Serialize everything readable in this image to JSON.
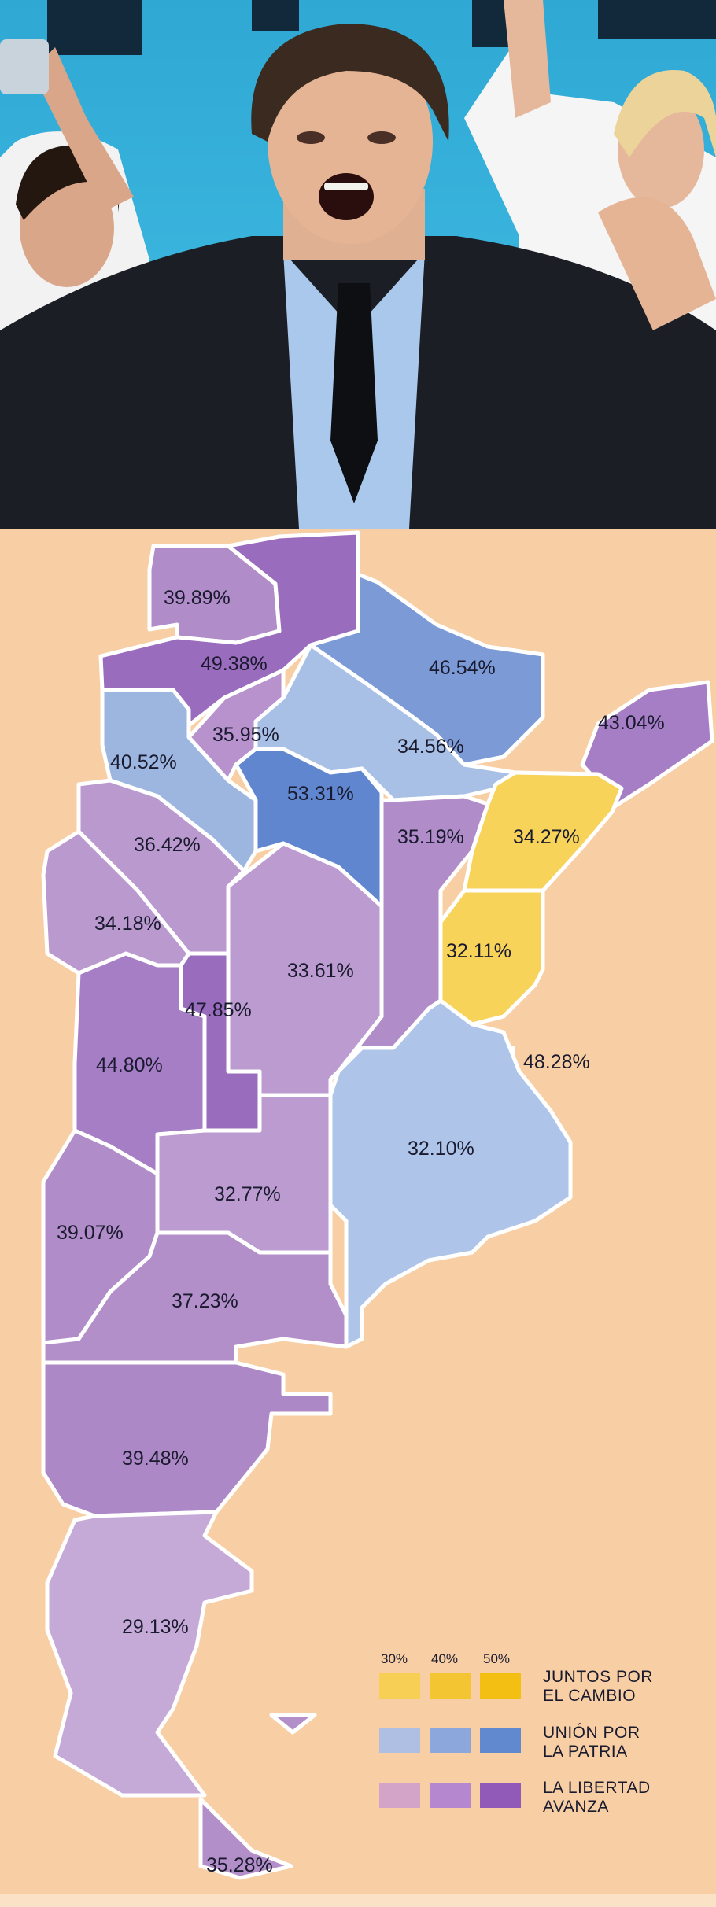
{
  "map": {
    "provinces": [
      {
        "id": "jujuy",
        "value": "39.89%",
        "party": "libertad",
        "level": 30,
        "color": "#b08cc8"
      },
      {
        "id": "salta",
        "value": "49.38%",
        "party": "libertad",
        "level": 40,
        "color": "#9a6cbd"
      },
      {
        "id": "formosa",
        "value": "46.54%",
        "party": "union",
        "level": 40,
        "color": "#7b9ad6"
      },
      {
        "id": "misiones",
        "value": "43.04%",
        "party": "libertad",
        "level": 40,
        "color": "#a57ec6"
      },
      {
        "id": "catamarca",
        "value": "40.52%",
        "party": "union",
        "level": 40,
        "color": "#9cb6e0"
      },
      {
        "id": "tucuman",
        "value": "35.95%",
        "party": "libertad",
        "level": 30,
        "color": "#b792cd"
      },
      {
        "id": "chaco",
        "value": "34.56%",
        "party": "union",
        "level": 30,
        "color": "#a8c0e6"
      },
      {
        "id": "santiago-del-estero",
        "value": "53.31%",
        "party": "union",
        "level": 50,
        "color": "#5f86cf"
      },
      {
        "id": "la-rioja",
        "value": "36.42%",
        "party": "libertad",
        "level": 30,
        "color": "#ba99cf"
      },
      {
        "id": "santa-fe",
        "value": "35.19%",
        "party": "libertad",
        "level": 30,
        "color": "#b08cc8"
      },
      {
        "id": "corrientes",
        "value": "34.27%",
        "party": "juntos",
        "level": 30,
        "color": "#f7d35a"
      },
      {
        "id": "san-juan",
        "value": "34.18%",
        "party": "libertad",
        "level": 30,
        "color": "#ba99cf"
      },
      {
        "id": "cordoba",
        "value": "33.61%",
        "party": "libertad",
        "level": 30,
        "color": "#bb9bd0"
      },
      {
        "id": "entre-rios",
        "value": "32.11%",
        "party": "juntos",
        "level": 30,
        "color": "#f7d35a"
      },
      {
        "id": "san-luis",
        "value": "47.85%",
        "party": "libertad",
        "level": 40,
        "color": "#9a6cbd"
      },
      {
        "id": "mendoza",
        "value": "44.80%",
        "party": "libertad",
        "level": 40,
        "color": "#a57ec6"
      },
      {
        "id": "caba",
        "value": "48.28%",
        "party": "juntos",
        "level": 40,
        "color": "#f2c21a"
      },
      {
        "id": "buenos-aires",
        "value": "32.10%",
        "party": "union",
        "level": 30,
        "color": "#aec4e8"
      },
      {
        "id": "la-pampa",
        "value": "32.77%",
        "party": "libertad",
        "level": 30,
        "color": "#bb9bd0"
      },
      {
        "id": "neuquen",
        "value": "39.07%",
        "party": "libertad",
        "level": 30,
        "color": "#b08cc8"
      },
      {
        "id": "rio-negro",
        "value": "37.23%",
        "party": "libertad",
        "level": 30,
        "color": "#b38fca"
      },
      {
        "id": "chubut",
        "value": "39.48%",
        "party": "libertad",
        "level": 30,
        "color": "#ac88c6"
      },
      {
        "id": "santa-cruz",
        "value": "29.13%",
        "party": "libertad",
        "level": 30,
        "color": "#c5aad8"
      },
      {
        "id": "tierra-del-fuego",
        "value": "35.28%",
        "party": "libertad",
        "level": 30,
        "color": "#b38fca"
      }
    ]
  },
  "legend": {
    "headers": [
      "30%",
      "40%",
      "50%"
    ],
    "rows": [
      {
        "label_line1": "JUNTOS POR",
        "label_line2": "EL CAMBIO",
        "colors": [
          "#f7cf55",
          "#f4c533",
          "#f2bf12"
        ]
      },
      {
        "label_line1": "UNIÓN POR",
        "label_line2": "LA PATRIA",
        "colors": [
          "#aebfe3",
          "#8ba7dc",
          "#6189d0"
        ]
      },
      {
        "label_line1": "LA LIBERTAD",
        "label_line2": "AVANZA",
        "colors": [
          "#d4a3c8",
          "#b587cf",
          "#9159b8"
        ]
      }
    ]
  },
  "colors": {
    "background": "#f8cfa4",
    "border": "#ffffff",
    "photo_backdrop": "#3ab0d6"
  }
}
